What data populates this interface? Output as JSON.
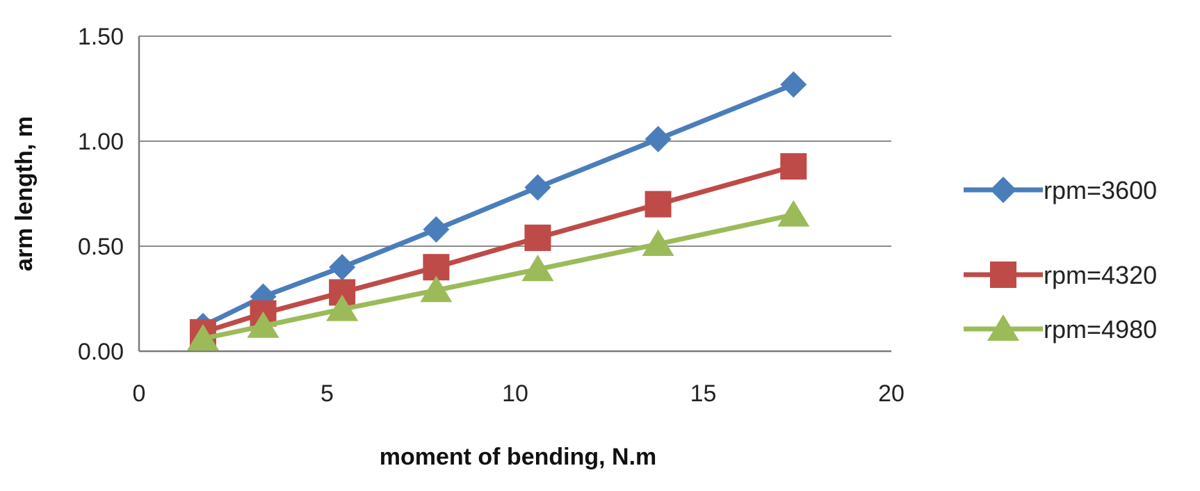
{
  "chart_data": {
    "type": "line",
    "title": "",
    "xlabel": "moment of bending, N.m",
    "ylabel": "arm length, m",
    "xlim": [
      0,
      20
    ],
    "ylim": [
      0,
      1.5
    ],
    "xticks": [
      "0",
      "5",
      "10",
      "15",
      "20"
    ],
    "yticks": [
      "0.00",
      "0.50",
      "1.00",
      "1.50"
    ],
    "grid": "horizontal",
    "legend_position": "right",
    "series": [
      {
        "name": "rpm=3600",
        "color": "#4A7EBB",
        "marker": "diamond",
        "x": [
          1.7,
          3.3,
          5.4,
          7.9,
          10.6,
          13.8,
          17.4
        ],
        "y": [
          0.12,
          0.26,
          0.4,
          0.58,
          0.78,
          1.01,
          1.27
        ]
      },
      {
        "name": "rpm=4320",
        "color": "#BE4B48",
        "marker": "square",
        "x": [
          1.7,
          3.3,
          5.4,
          7.9,
          10.6,
          13.8,
          17.4
        ],
        "y": [
          0.09,
          0.18,
          0.28,
          0.4,
          0.54,
          0.7,
          0.88
        ]
      },
      {
        "name": "rpm=4980",
        "color": "#9BBB59",
        "marker": "triangle",
        "x": [
          1.7,
          3.3,
          5.4,
          7.9,
          10.6,
          13.8,
          17.4
        ],
        "y": [
          0.06,
          0.12,
          0.2,
          0.29,
          0.39,
          0.51,
          0.65
        ]
      }
    ]
  }
}
